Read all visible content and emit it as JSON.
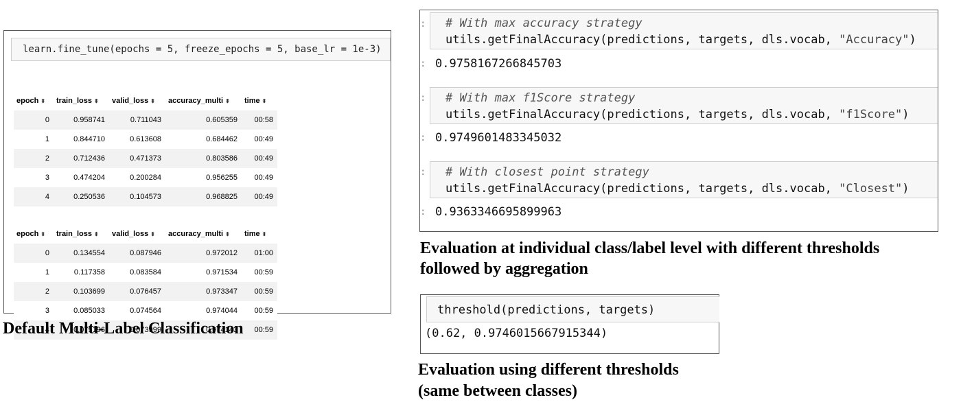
{
  "left": {
    "code": "learn.fine_tune(epochs = 5, freeze_epochs = 5, base_lr = 1e-3)",
    "columns": [
      "epoch",
      "train_loss",
      "valid_loss",
      "accuracy_multi",
      "time"
    ],
    "sort_icon": "sort-arrows-icon",
    "sort_glyph": "⬍",
    "table1": [
      [
        "0",
        "0.958741",
        "0.711043",
        "0.605359",
        "00:58"
      ],
      [
        "1",
        "0.844710",
        "0.613608",
        "0.684462",
        "00:49"
      ],
      [
        "2",
        "0.712436",
        "0.471373",
        "0.803586",
        "00:49"
      ],
      [
        "3",
        "0.474204",
        "0.200284",
        "0.956255",
        "00:49"
      ],
      [
        "4",
        "0.250536",
        "0.104573",
        "0.968825",
        "00:49"
      ]
    ],
    "table2": [
      [
        "0",
        "0.134554",
        "0.087946",
        "0.972012",
        "01:00"
      ],
      [
        "1",
        "0.117358",
        "0.083584",
        "0.971534",
        "00:59"
      ],
      [
        "2",
        "0.103699",
        "0.076457",
        "0.973347",
        "00:59"
      ],
      [
        "3",
        "0.085033",
        "0.074564",
        "0.974044",
        "00:59"
      ],
      [
        "4",
        "0.075196",
        "0.073999",
        "0.974143",
        "00:59"
      ]
    ],
    "caption": "Default Multi-Label Classification"
  },
  "right_top": {
    "prompt": ":",
    "collapse_glyph": "▾",
    "cells": [
      {
        "comment": "# With max accuracy strategy",
        "code_prefix": "utils.getFinalAccuracy(predictions, targets, dls.vocab, ",
        "code_string": "\"Accuracy\"",
        "code_suffix": ")",
        "output": "0.9758167266845703"
      },
      {
        "comment": "# With max f1Score strategy",
        "code_prefix": "utils.getFinalAccuracy(predictions, targets, dls.vocab, ",
        "code_string": "\"f1Score\"",
        "code_suffix": ")",
        "output": "0.9749601483345032"
      },
      {
        "comment": "# With closest point strategy",
        "code_prefix": "utils.getFinalAccuracy(predictions, targets, dls.vocab, ",
        "code_string": "\"Closest\"",
        "code_suffix": ")",
        "output": "0.9363346695899963"
      }
    ],
    "caption_line1": "Evaluation at individual class/label level with different thresholds",
    "caption_line2": "followed by aggregation"
  },
  "right_bottom": {
    "code": "threshold(predictions, targets)",
    "output": "(0.62, 0.9746015667915344)",
    "caption_line1": "Evaluation using different thresholds",
    "caption_line2": "(same between classes)"
  }
}
